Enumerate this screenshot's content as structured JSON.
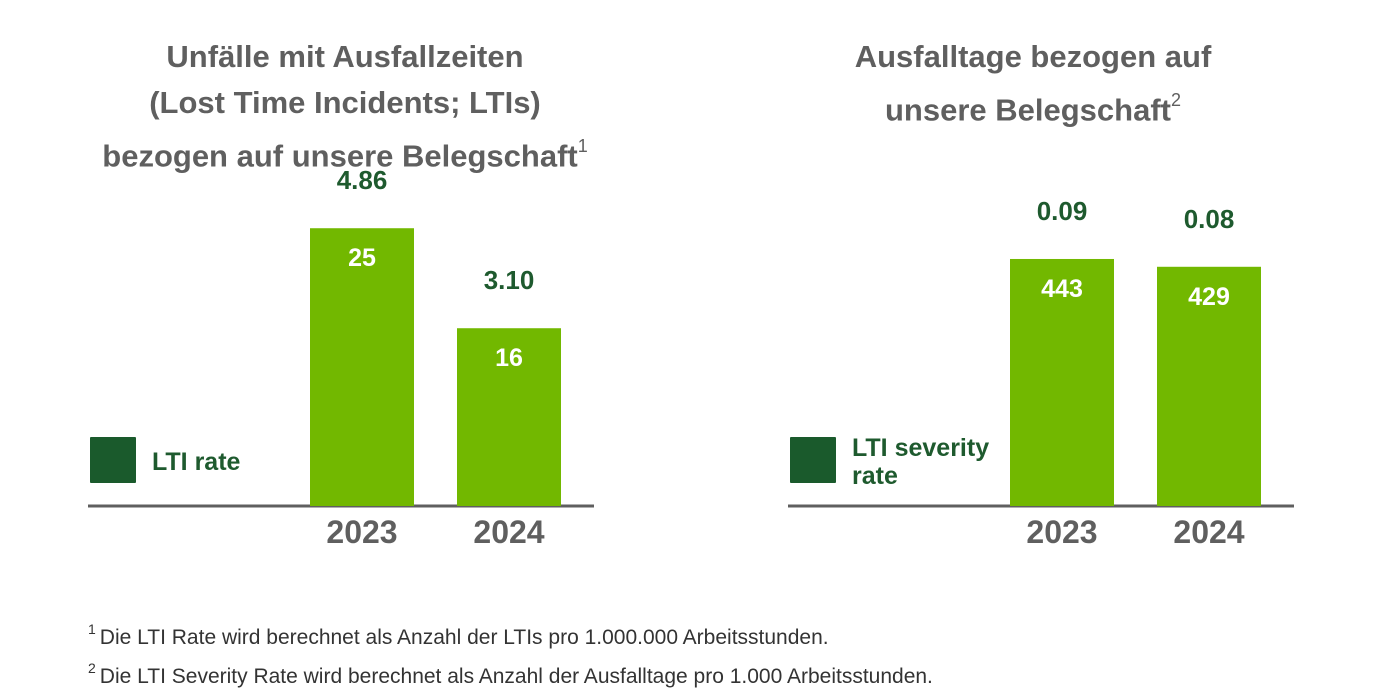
{
  "colors": {
    "bar": "#72b800",
    "legend_swatch": "#1a5a2c",
    "value_text": "#1e5a2e",
    "title_text": "#5f5f5f",
    "axis": "#5f5f5f"
  },
  "charts": {
    "left": {
      "title_lines": [
        "Unfälle mit Ausfallzeiten",
        "(Lost Time Incidents; LTIs)",
        "bezogen auf unsere Belegschaft"
      ],
      "title_footnote": "1",
      "legend_label": "LTI rate"
    },
    "right": {
      "title_lines": [
        "Ausfalltage bezogen auf",
        "unsere Belegschaft"
      ],
      "title_footnote": "2",
      "legend_label_lines": [
        "LTI severity",
        "rate"
      ]
    }
  },
  "chart_data": [
    {
      "type": "bar",
      "title": "Unfälle mit Ausfallzeiten (Lost Time Incidents; LTIs) bezogen auf unsere Belegschaft",
      "categories": [
        "2023",
        "2024"
      ],
      "series": [
        {
          "name": "LTIs",
          "values": [
            25,
            16
          ],
          "labels": [
            "25",
            "16"
          ]
        },
        {
          "name": "LTI rate",
          "values": [
            4.86,
            3.1
          ],
          "labels": [
            "4.86",
            "3.10"
          ]
        }
      ],
      "ylim": [
        0,
        27
      ],
      "xlabel": "",
      "ylabel": "",
      "legend": "left"
    },
    {
      "type": "bar",
      "title": "Ausfalltage bezogen auf unsere Belegschaft",
      "categories": [
        "2023",
        "2024"
      ],
      "series": [
        {
          "name": "Ausfalltage",
          "values": [
            443,
            429
          ],
          "labels": [
            "443",
            "429"
          ]
        },
        {
          "name": "LTI severity rate",
          "values": [
            0.09,
            0.08
          ],
          "labels": [
            "0.09",
            "0.08"
          ]
        }
      ],
      "ylim": [
        0,
        538
      ],
      "xlabel": "",
      "ylabel": "",
      "legend": "left"
    }
  ],
  "footnotes": [
    {
      "marker": "1",
      "text": "Die LTI Rate wird berechnet als Anzahl der LTIs pro 1.000.000 Arbeitsstunden."
    },
    {
      "marker": "2",
      "text": "Die LTI Severity Rate wird berechnet als Anzahl der Ausfalltage pro 1.000 Arbeitsstunden."
    }
  ]
}
